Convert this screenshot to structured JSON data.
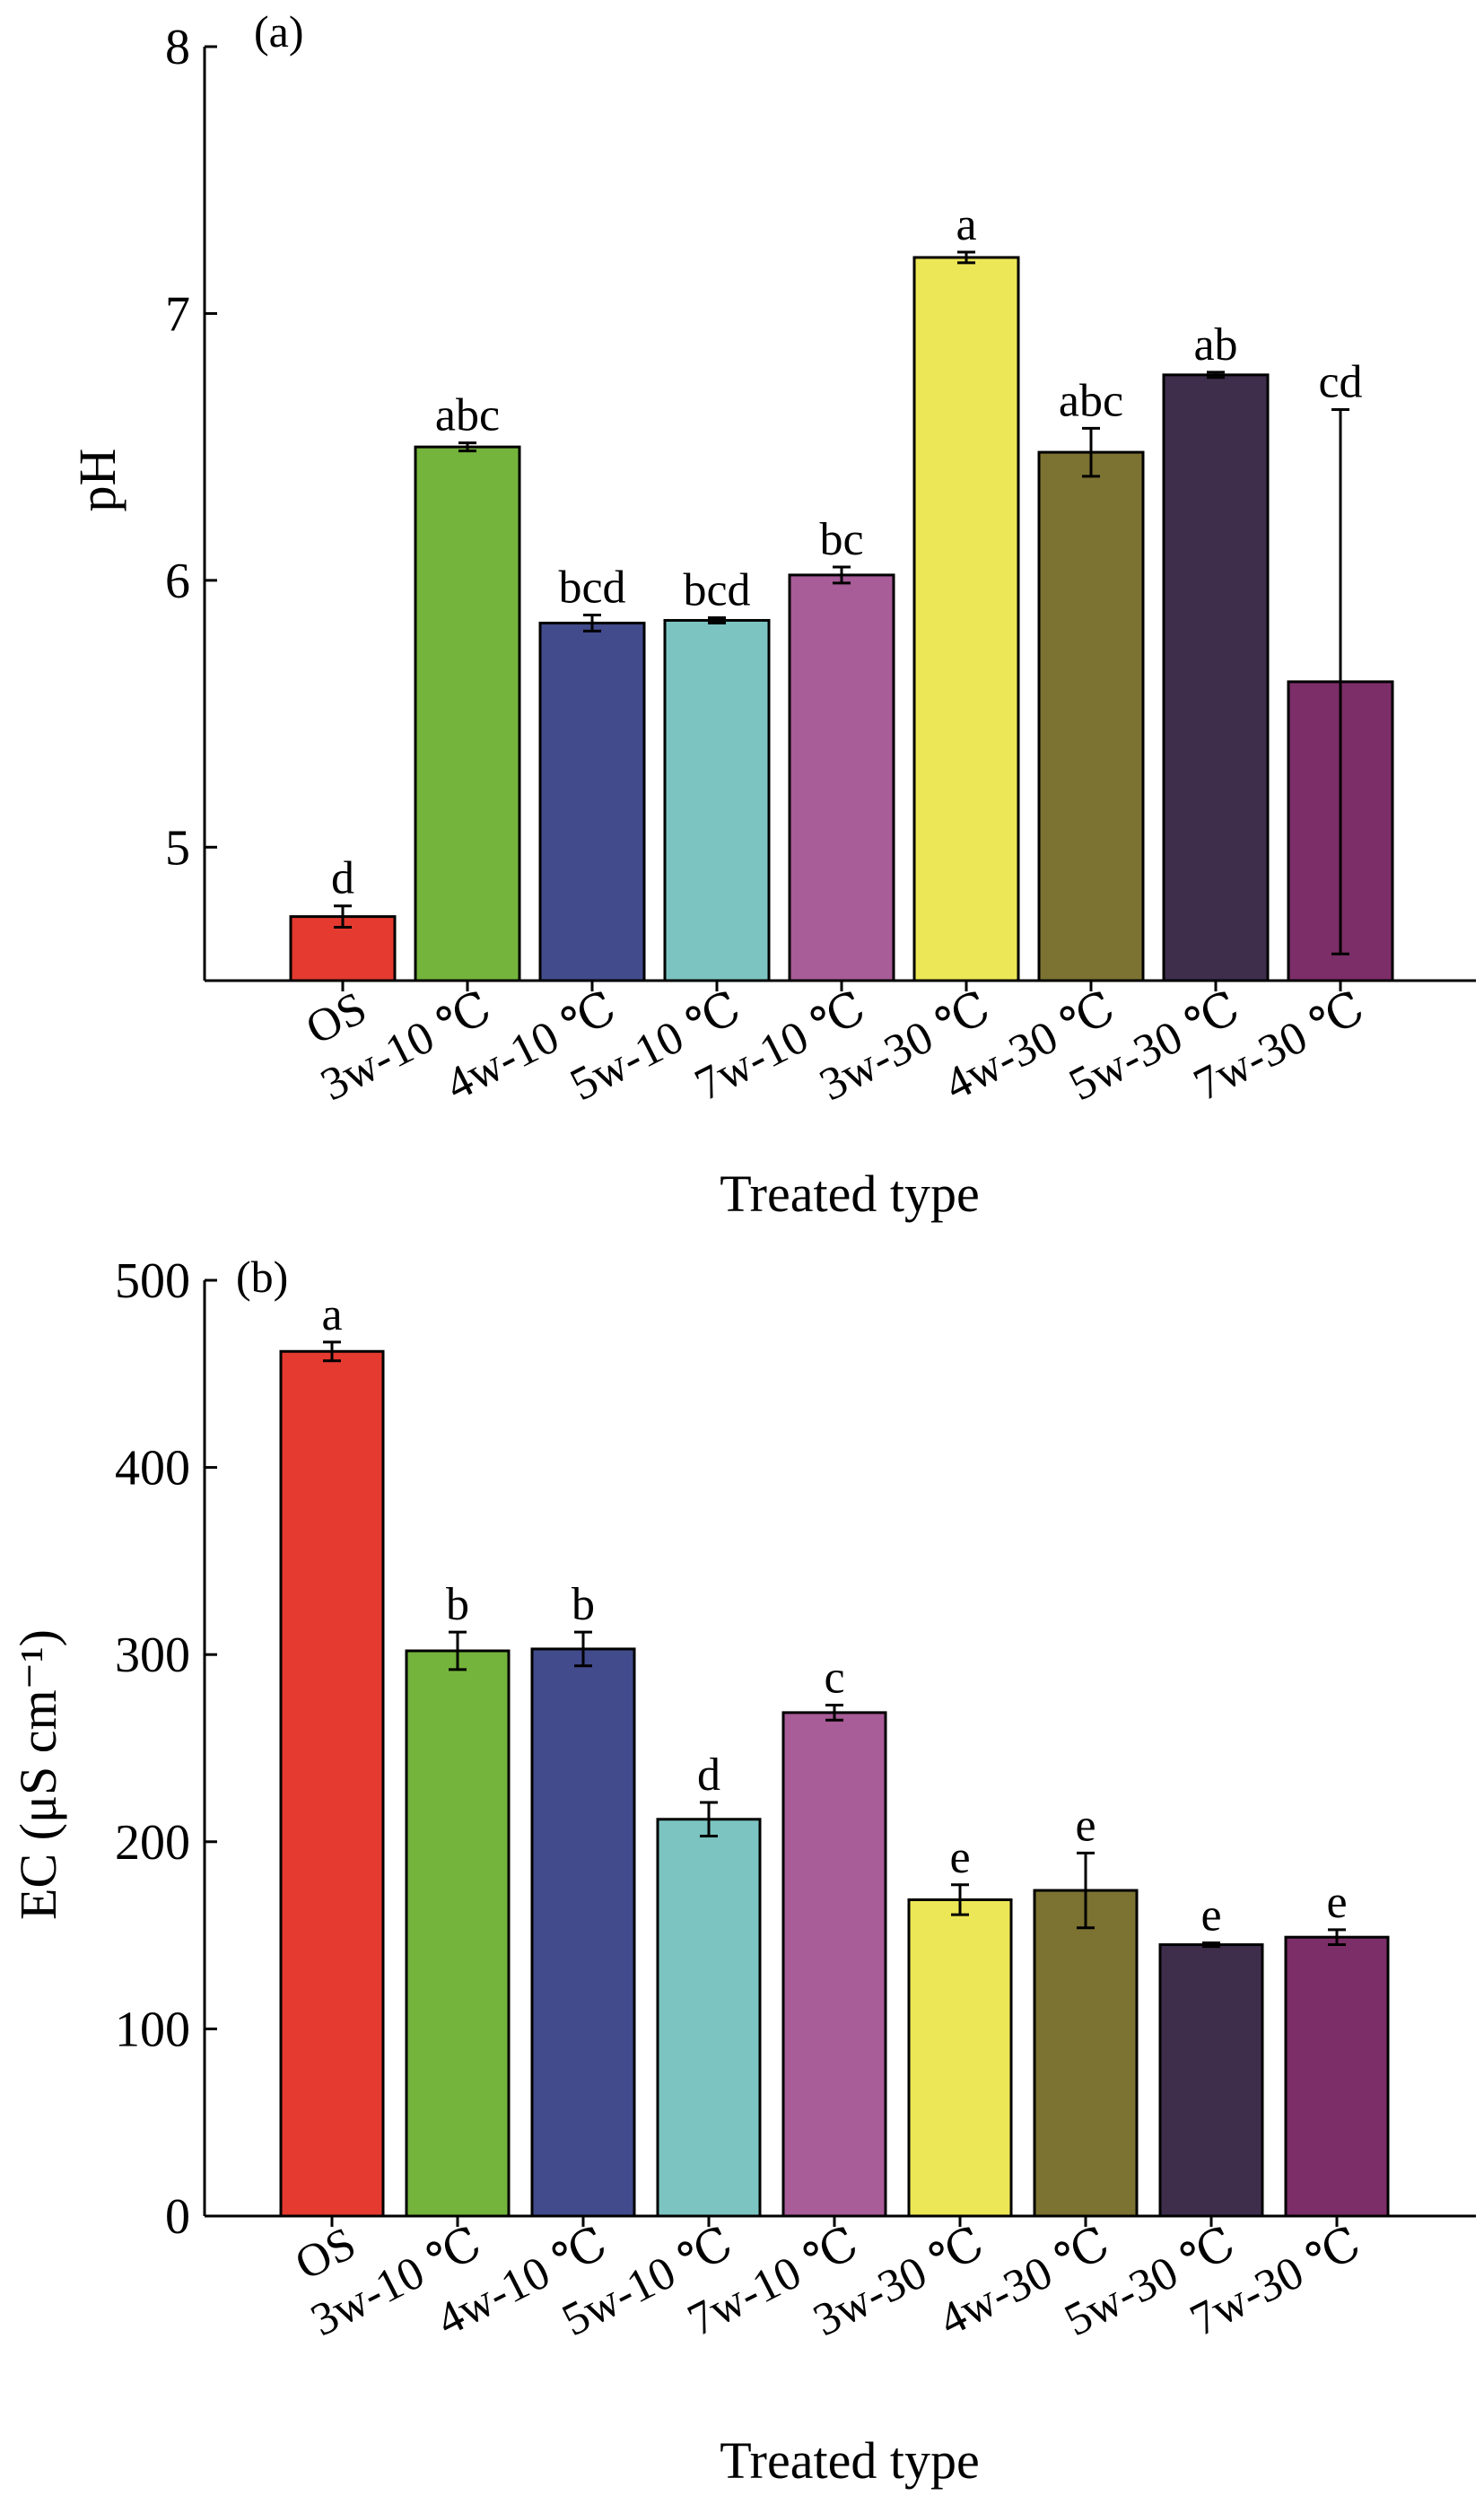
{
  "chart_data": [
    {
      "type": "bar",
      "panel_label": "(a)",
      "xlabel": "Treated type",
      "ylabel": "pH",
      "ylim": [
        4.5,
        8
      ],
      "yticks": [
        "5",
        "6",
        "7",
        "8"
      ],
      "categories": [
        "OS",
        "3w-10 ℃",
        "4w-10 ℃",
        "5w-10 ℃",
        "7w-10 ℃",
        "3w-30 ℃",
        "4w-30 ℃",
        "5w-30 ℃",
        "7w-30 ℃"
      ],
      "values": [
        4.74,
        6.5,
        5.84,
        5.85,
        6.02,
        7.21,
        6.48,
        6.77,
        5.62
      ],
      "errors": [
        0.04,
        0.015,
        0.03,
        0.01,
        0.03,
        0.02,
        0.09,
        0.01,
        1.02
      ],
      "significance": [
        "d",
        "abc",
        "bcd",
        "bcd",
        "bc",
        "a",
        "abc",
        "ab",
        "cd"
      ],
      "colors": [
        "#e53a30",
        "#74b43c",
        "#424b8c",
        "#7cc4c2",
        "#a85c98",
        "#ece756",
        "#7c7232",
        "#3e2e4c",
        "#7c2e68"
      ],
      "grid": false
    },
    {
      "type": "bar",
      "panel_label": "(b)",
      "xlabel": "Treated type",
      "ylabel": "EC (μS cm⁻¹)",
      "ylim": [
        0,
        500
      ],
      "yticks": [
        "0",
        "100",
        "200",
        "300",
        "400",
        "500"
      ],
      "categories": [
        "OS",
        "3w-10 ℃",
        "4w-10 ℃",
        "5w-10 ℃",
        "7w-10 ℃",
        "3w-30 ℃",
        "4w-30 ℃",
        "5w-30 ℃",
        "7w-30 ℃"
      ],
      "values": [
        462,
        302,
        303,
        212,
        269,
        169,
        174,
        145,
        149
      ],
      "errors": [
        5,
        10,
        9,
        9,
        4,
        8,
        20,
        1,
        4
      ],
      "significance": [
        "a",
        "b",
        "b",
        "d",
        "c",
        "e",
        "e",
        "e",
        "e"
      ],
      "colors": [
        "#e53a30",
        "#74b43c",
        "#424b8c",
        "#7cc4c2",
        "#a85c98",
        "#ece756",
        "#7c7232",
        "#3e2e4c",
        "#7c2e68"
      ],
      "grid": false
    }
  ]
}
